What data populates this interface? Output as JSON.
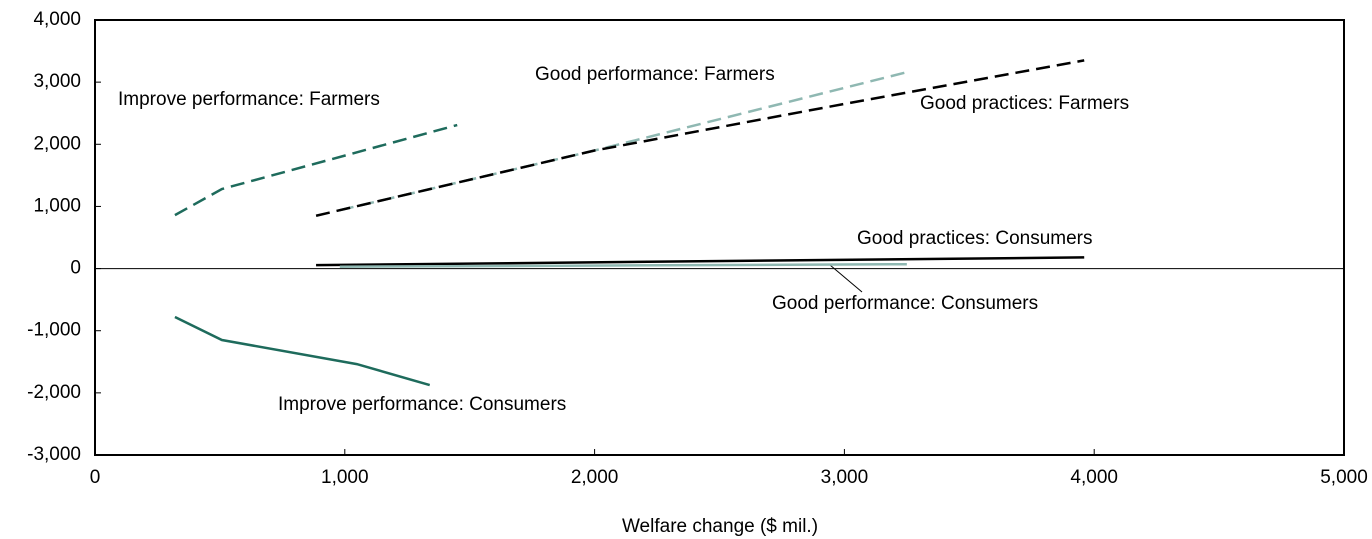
{
  "chart_data": {
    "type": "line",
    "x_label": "Welfare change ($ mil.)",
    "xlim": [
      0,
      5000
    ],
    "xticks": [
      0,
      {
        "value": 1000,
        "label": "1,000"
      },
      {
        "value": 2000,
        "label": "2,000"
      },
      {
        "value": 3000,
        "label": "3,000"
      },
      {
        "value": 4000,
        "label": "4,000"
      },
      {
        "value": 5000,
        "label": "5,000"
      }
    ],
    "ylim": [
      -3000,
      4000
    ],
    "yticks": [
      {
        "value": -3000,
        "label": "-3,000"
      },
      {
        "value": -2000,
        "label": "-2,000"
      },
      {
        "value": -1000,
        "label": "-1,000"
      },
      0,
      {
        "value": 1000,
        "label": "1,000"
      },
      {
        "value": 2000,
        "label": "2,000"
      },
      {
        "value": 3000,
        "label": "3,000"
      },
      {
        "value": 4000,
        "label": "4,000"
      }
    ],
    "series": [
      {
        "name": "Improve performance: Farmers",
        "color": "#1e6b5c",
        "dashed": true,
        "x": [
          320,
          508,
          1450
        ],
        "values": [
          860,
          1280,
          2310
        ]
      },
      {
        "name": "Good performance: Farmers",
        "color": "#8fb8b2",
        "dashed": true,
        "x": [
          980,
          2000,
          3250
        ],
        "values": [
          940,
          1900,
          3160
        ]
      },
      {
        "name": "Good practices: Farmers",
        "color": "#000000",
        "dashed": true,
        "x": [
          885,
          2000,
          3000,
          3960
        ],
        "values": [
          850,
          1900,
          2650,
          3350
        ]
      },
      {
        "name": "Good practices: Consumers",
        "color": "#000000",
        "dashed": false,
        "x": [
          885,
          3960
        ],
        "values": [
          55,
          180
        ]
      },
      {
        "name": "Good performance: Consumers",
        "color": "#8fb8b2",
        "dashed": false,
        "x": [
          980,
          3250
        ],
        "values": [
          30,
          70
        ]
      },
      {
        "name": "Improve performance: Consumers",
        "color": "#1e6b5c",
        "dashed": false,
        "x": [
          320,
          508,
          1048,
          1340
        ],
        "values": [
          -780,
          -1150,
          -1537,
          -1875
        ]
      }
    ]
  }
}
